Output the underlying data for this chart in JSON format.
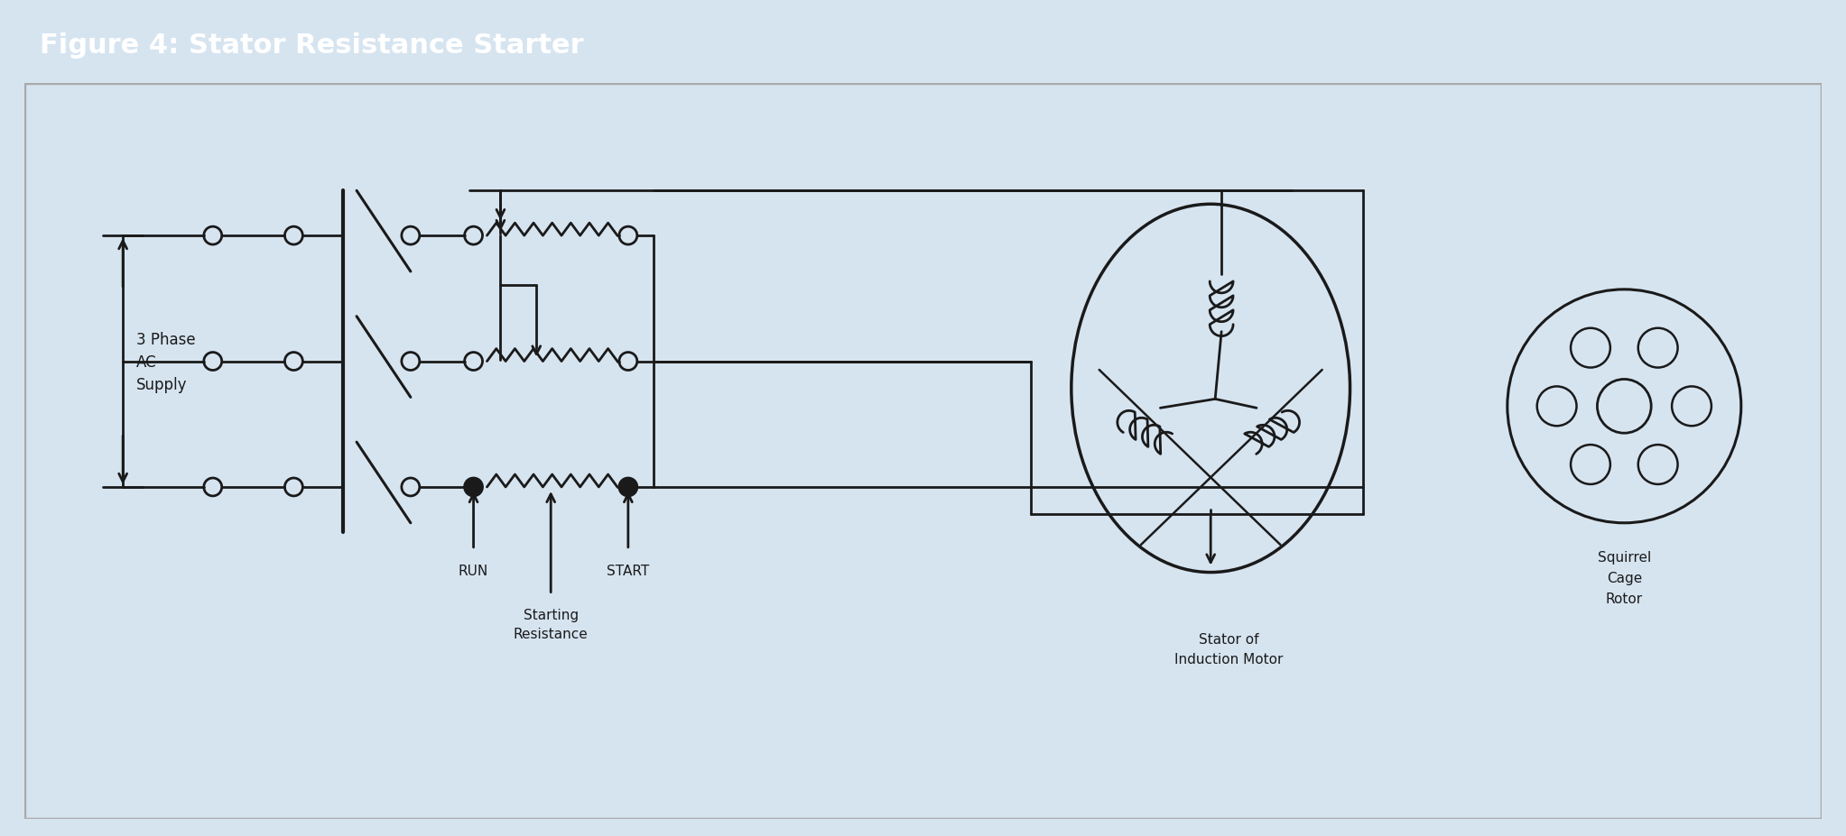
{
  "title": "Figure 4: Stator Resistance Starter",
  "title_bg": "#1b5faa",
  "title_fg": "#ffffff",
  "outer_bg": "#d6e4f0",
  "inner_bg": "#f8f8f8",
  "lc": "#1a1a1a",
  "label_3phase": "3 Phase\nAC\nSupply",
  "label_run": "RUN",
  "label_start": "START",
  "label_resistance": "Starting\nResistance",
  "label_stator": "Stator of\nInduction Motor",
  "label_squirrel": "Squirrel\nCage\nRotor"
}
